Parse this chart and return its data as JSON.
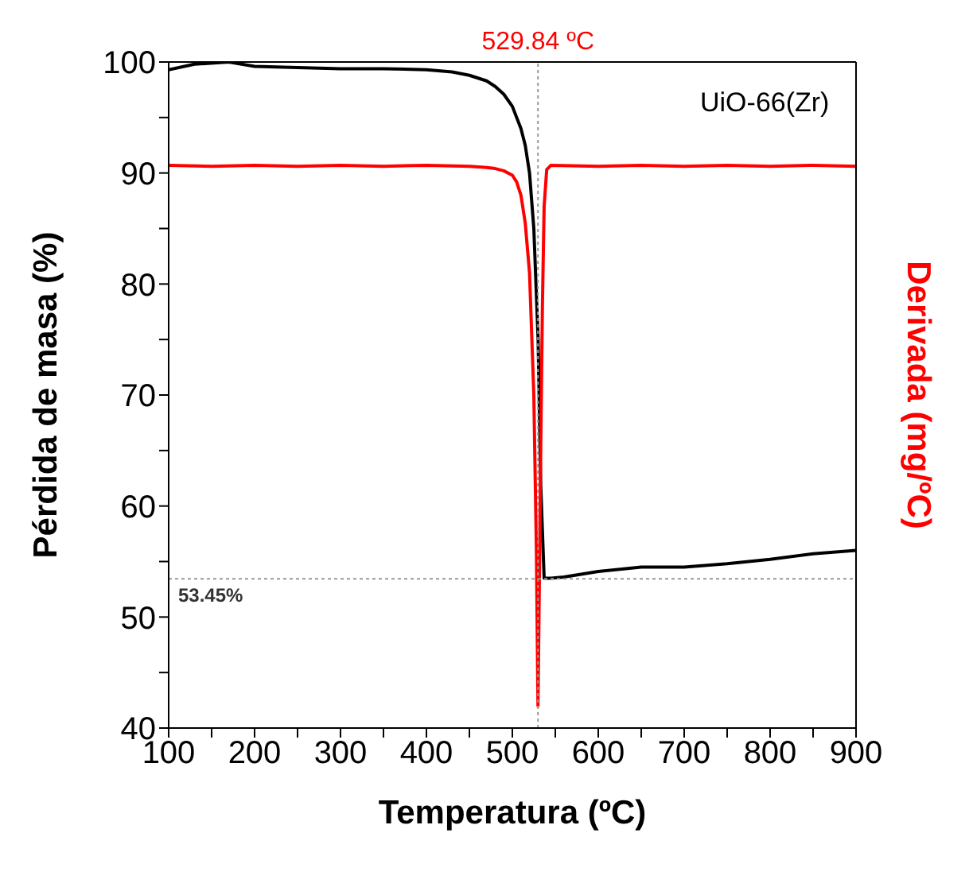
{
  "chart_data": {
    "type": "line",
    "xlabel": "Temperatura (ºC)",
    "ylabel": "Pérdida de masa (%)",
    "y2label": "Derivada (mg/ºC)",
    "xlim": [
      100,
      900
    ],
    "xticks": [
      100,
      {
        "value": 150,
        "label": null
      },
      200,
      {
        "value": 250,
        "label": null
      },
      300,
      {
        "value": 350,
        "label": null
      },
      400,
      {
        "value": 450,
        "label": null
      },
      500,
      {
        "value": 550,
        "label": null
      },
      600,
      {
        "value": 650,
        "label": null
      },
      700,
      {
        "value": 750,
        "label": null
      },
      800,
      {
        "value": 850,
        "label": null
      },
      900
    ],
    "ylim": [
      40,
      100
    ],
    "yticks": [
      40,
      {
        "value": 45,
        "label": null
      },
      50,
      {
        "value": 55,
        "label": null
      },
      60,
      {
        "value": 65,
        "label": null
      },
      70,
      {
        "value": 75,
        "label": null
      },
      80,
      {
        "value": 85,
        "label": null
      },
      90,
      {
        "value": 95,
        "label": null
      },
      100
    ],
    "grid": false,
    "legend": false,
    "marker": "none",
    "line_style": "solid",
    "series": [
      {
        "color": "#000000",
        "x": [
          100,
          130,
          170,
          200,
          250,
          300,
          350,
          400,
          430,
          450,
          470,
          480,
          490,
          500,
          510,
          515,
          520,
          525,
          530,
          533,
          537,
          545,
          560,
          600,
          650,
          700,
          750,
          800,
          850,
          900
        ],
        "values": [
          99.3,
          99.8,
          100,
          99.6,
          99.5,
          99.4,
          99.4,
          99.3,
          99.1,
          98.8,
          98.3,
          97.8,
          97.1,
          96,
          94,
          92.5,
          90,
          85,
          75,
          62,
          53.5,
          53.5,
          53.6,
          54.1,
          54.5,
          54.5,
          54.8,
          55.2,
          55.7,
          56
        ]
      },
      {
        "color": "#ff0000",
        "x": [
          100,
          150,
          200,
          250,
          300,
          350,
          400,
          450,
          470,
          480,
          490,
          500,
          505,
          510,
          515,
          520,
          525,
          528,
          529.84,
          531,
          533,
          535,
          537,
          540,
          545,
          600,
          650,
          700,
          750,
          800,
          850,
          900
        ],
        "values": [
          90.7,
          90.6,
          90.7,
          90.6,
          90.7,
          90.6,
          90.7,
          90.6,
          90.5,
          90.4,
          90.2,
          89.8,
          89.2,
          88,
          85.5,
          81,
          70,
          56,
          42,
          50,
          65,
          78,
          87,
          90.3,
          90.7,
          90.6,
          90.7,
          90.6,
          90.7,
          90.6,
          90.7,
          90.6
        ]
      }
    ],
    "ref_lines": [
      {
        "axis": "x",
        "value": 529.84,
        "label": "529.84 ºC",
        "color": "#999999",
        "line_style": "dotted"
      },
      {
        "axis": "y",
        "value": 53.45,
        "label": "53.45%",
        "color": "#999999",
        "line_style": "dotted"
      }
    ],
    "annotations": [
      "UiO-66(Zr)"
    ]
  }
}
